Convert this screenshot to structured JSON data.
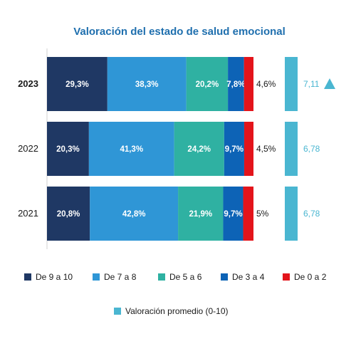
{
  "chart_data": {
    "type": "bar",
    "orientation": "horizontal",
    "stacked": true,
    "normalized": true,
    "title": "Valoración del estado de salud emocional",
    "categories": [
      "2023",
      "2022",
      "2021"
    ],
    "series": [
      {
        "name": "De 9 a 10",
        "color": "#1f3864",
        "values": [
          29.3,
          20.3,
          20.8
        ],
        "labels": [
          "29,3%",
          "20,3%",
          "20,8%"
        ]
      },
      {
        "name": "De 7 a 8",
        "color": "#2f96d6",
        "values": [
          38.3,
          41.3,
          42.8
        ],
        "labels": [
          "38,3%",
          "41,3%",
          "42,8%"
        ]
      },
      {
        "name": "De 5 a 6",
        "color": "#2fb1a2",
        "values": [
          20.2,
          24.2,
          21.9
        ],
        "labels": [
          "20,2%",
          "24,2%",
          "21,9%"
        ]
      },
      {
        "name": "De 3 a 4",
        "color": "#0d63b6",
        "values": [
          7.8,
          9.7,
          9.7
        ],
        "labels": [
          "7,8%",
          "9,7%",
          "9,7%"
        ]
      },
      {
        "name": "De 0 a 2",
        "color": "#e3141b",
        "values": [
          4.6,
          4.5,
          5.0
        ],
        "labels": [
          "4,6%",
          "4,5%",
          "5%"
        ]
      }
    ],
    "average": {
      "name": "Valoración promedio (0-10)",
      "color": "#4ab6d1",
      "values": [
        7.11,
        6.78,
        6.78
      ],
      "labels": [
        "7,11",
        "6,78",
        "6,78"
      ],
      "trend_up": [
        true,
        false,
        false
      ]
    },
    "legend_position": "bottom",
    "grid": false
  }
}
